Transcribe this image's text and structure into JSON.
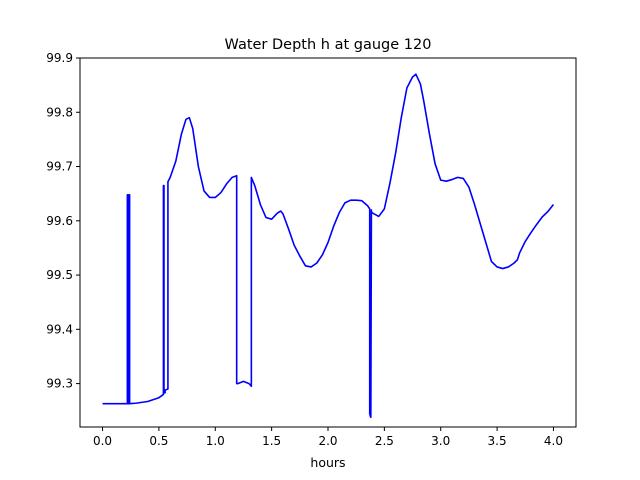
{
  "chart_data": {
    "type": "line",
    "title": "Water Depth h at gauge 120",
    "xlabel": "hours",
    "ylabel": "",
    "xlim": [
      -0.2,
      4.2
    ],
    "ylim": [
      99.22,
      99.9
    ],
    "xticks": [
      0.0,
      0.5,
      1.0,
      1.5,
      2.0,
      2.5,
      3.0,
      3.5,
      4.0
    ],
    "xtick_labels": [
      "0.0",
      "0.5",
      "1.0",
      "1.5",
      "2.0",
      "2.5",
      "3.0",
      "3.5",
      "4.0"
    ],
    "yticks": [
      99.3,
      99.4,
      99.5,
      99.6,
      99.7,
      99.8,
      99.9
    ],
    "ytick_labels": [
      "99.3",
      "99.4",
      "99.5",
      "99.6",
      "99.7",
      "99.8",
      "99.9"
    ],
    "grid": false,
    "series": [
      {
        "color": "#0000ff",
        "x": [
          0.0,
          0.22,
          0.22,
          0.225,
          0.225,
          0.235,
          0.235,
          0.24,
          0.24,
          0.3,
          0.4,
          0.5,
          0.54,
          0.54,
          0.545,
          0.545,
          0.555,
          0.555,
          0.58,
          0.58,
          0.6,
          0.65,
          0.7,
          0.74,
          0.77,
          0.8,
          0.85,
          0.9,
          0.95,
          1.0,
          1.05,
          1.1,
          1.15,
          1.19,
          1.19,
          1.2,
          1.25,
          1.3,
          1.32,
          1.32,
          1.35,
          1.4,
          1.45,
          1.5,
          1.55,
          1.58,
          1.6,
          1.65,
          1.7,
          1.75,
          1.8,
          1.85,
          1.9,
          1.95,
          2.0,
          2.05,
          2.1,
          2.15,
          2.2,
          2.25,
          2.3,
          2.35,
          2.37,
          2.37,
          2.375,
          2.38,
          2.385,
          2.385,
          2.39,
          2.45,
          2.5,
          2.55,
          2.6,
          2.65,
          2.7,
          2.75,
          2.78,
          2.82,
          2.85,
          2.9,
          2.95,
          3.0,
          3.05,
          3.1,
          3.15,
          3.2,
          3.25,
          3.3,
          3.35,
          3.4,
          3.45,
          3.5,
          3.55,
          3.6,
          3.65,
          3.68,
          3.7,
          3.75,
          3.8,
          3.85,
          3.9,
          3.95,
          4.0
        ],
        "y": [
          99.263,
          99.263,
          99.648,
          99.648,
          99.263,
          99.263,
          99.648,
          99.648,
          99.263,
          99.264,
          99.267,
          99.274,
          99.28,
          99.665,
          99.665,
          99.283,
          99.283,
          99.288,
          99.29,
          99.672,
          99.68,
          99.71,
          99.76,
          99.787,
          99.79,
          99.77,
          99.7,
          99.655,
          99.643,
          99.643,
          99.652,
          99.668,
          99.68,
          99.683,
          99.3,
          99.3,
          99.304,
          99.3,
          99.295,
          99.68,
          99.665,
          99.63,
          99.606,
          99.603,
          99.614,
          99.618,
          99.613,
          99.585,
          99.555,
          99.535,
          99.517,
          99.515,
          99.522,
          99.537,
          99.56,
          99.59,
          99.615,
          99.633,
          99.638,
          99.638,
          99.637,
          99.628,
          99.622,
          99.245,
          99.24,
          99.238,
          99.62,
          99.618,
          99.615,
          99.608,
          99.622,
          99.67,
          99.725,
          99.79,
          99.845,
          99.865,
          99.87,
          99.852,
          99.82,
          99.76,
          99.705,
          99.675,
          99.673,
          99.676,
          99.68,
          99.678,
          99.662,
          99.63,
          99.595,
          99.56,
          99.525,
          99.515,
          99.512,
          99.515,
          99.522,
          99.528,
          99.541,
          99.562,
          99.578,
          99.593,
          99.607,
          99.617,
          99.63
        ]
      }
    ]
  }
}
